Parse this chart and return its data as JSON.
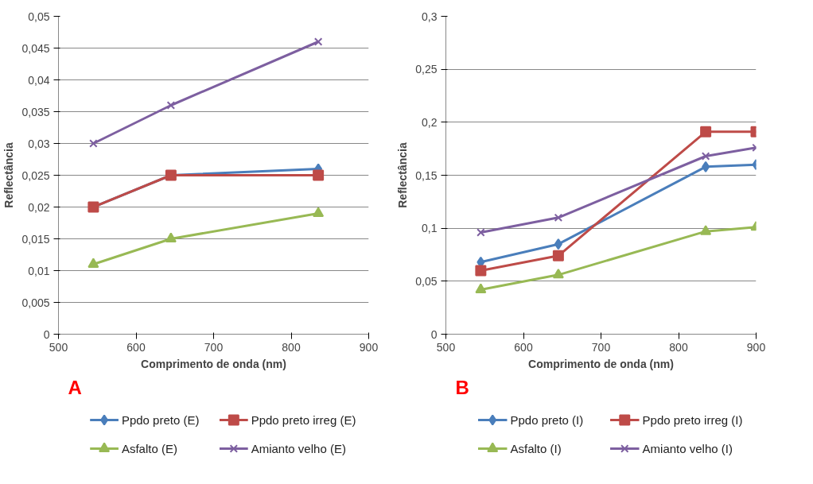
{
  "chart_data": [
    {
      "type": "line",
      "xlabel": "Comprimento de onda (nm)",
      "ylabel": "Reflectância",
      "annotations": [
        "A"
      ],
      "x": [
        545,
        645,
        835
      ],
      "xlim": [
        500,
        900
      ],
      "xticks": [
        500,
        600,
        700,
        800,
        900
      ],
      "ylim": [
        0,
        0.05
      ],
      "yticks": [
        {
          "value": 0,
          "label": "0"
        },
        {
          "value": 0.005,
          "label": "0,005"
        },
        {
          "value": 0.01,
          "label": "0,01"
        },
        {
          "value": 0.015,
          "label": "0,015"
        },
        {
          "value": 0.02,
          "label": "0,02"
        },
        {
          "value": 0.025,
          "label": "0,025"
        },
        {
          "value": 0.03,
          "label": "0,03"
        },
        {
          "value": 0.035,
          "label": "0,035"
        },
        {
          "value": 0.04,
          "label": "0,04"
        },
        {
          "value": 0.045,
          "label": "0,045"
        },
        {
          "value": 0.05,
          "label": "0,05"
        }
      ],
      "grid": "y",
      "legend": "bottom",
      "series": [
        {
          "name": "Ppdo preto (E)",
          "color": "#4a7ebb",
          "marker": "diamond",
          "values": [
            0.02,
            0.025,
            0.026
          ]
        },
        {
          "name": "Ppdo preto irreg (E)",
          "color": "#be4b48",
          "marker": "square",
          "values": [
            0.02,
            0.025,
            0.025
          ]
        },
        {
          "name": "Asfalto (E)",
          "color": "#98b954",
          "marker": "triangle",
          "values": [
            0.011,
            0.015,
            0.019
          ]
        },
        {
          "name": "Amianto velho (E)",
          "color": "#7d5fa0",
          "marker": "cross",
          "values": [
            0.03,
            0.036,
            0.046
          ]
        }
      ]
    },
    {
      "type": "line",
      "xlabel": "Comprimento de onda (nm)",
      "ylabel": "Reflectância",
      "annotations": [
        "B"
      ],
      "x": [
        545,
        645,
        835,
        900
      ],
      "xlim": [
        500,
        900
      ],
      "xticks": [
        500,
        600,
        700,
        800,
        900
      ],
      "ylim": [
        0,
        0.3
      ],
      "yticks": [
        {
          "value": 0,
          "label": "0"
        },
        {
          "value": 0.05,
          "label": "0,05"
        },
        {
          "value": 0.1,
          "label": "0,1"
        },
        {
          "value": 0.15,
          "label": "0,15"
        },
        {
          "value": 0.2,
          "label": "0,2"
        },
        {
          "value": 0.25,
          "label": "0,25"
        },
        {
          "value": 0.3,
          "label": "0,3"
        }
      ],
      "grid": "y",
      "legend": "bottom",
      "series": [
        {
          "name": "Ppdo preto (I)",
          "color": "#4a7ebb",
          "marker": "diamond",
          "values": [
            0.068,
            0.085,
            0.158,
            0.16
          ]
        },
        {
          "name": "Ppdo preto irreg (I)",
          "color": "#be4b48",
          "marker": "square",
          "values": [
            0.06,
            0.074,
            0.191,
            0.191
          ]
        },
        {
          "name": "Asfalto (I)",
          "color": "#98b954",
          "marker": "triangle",
          "values": [
            0.042,
            0.056,
            0.097,
            0.101
          ]
        },
        {
          "name": "Amianto velho (I)",
          "color": "#7d5fa0",
          "marker": "cross",
          "values": [
            0.096,
            0.11,
            0.168,
            0.176
          ]
        }
      ]
    }
  ]
}
